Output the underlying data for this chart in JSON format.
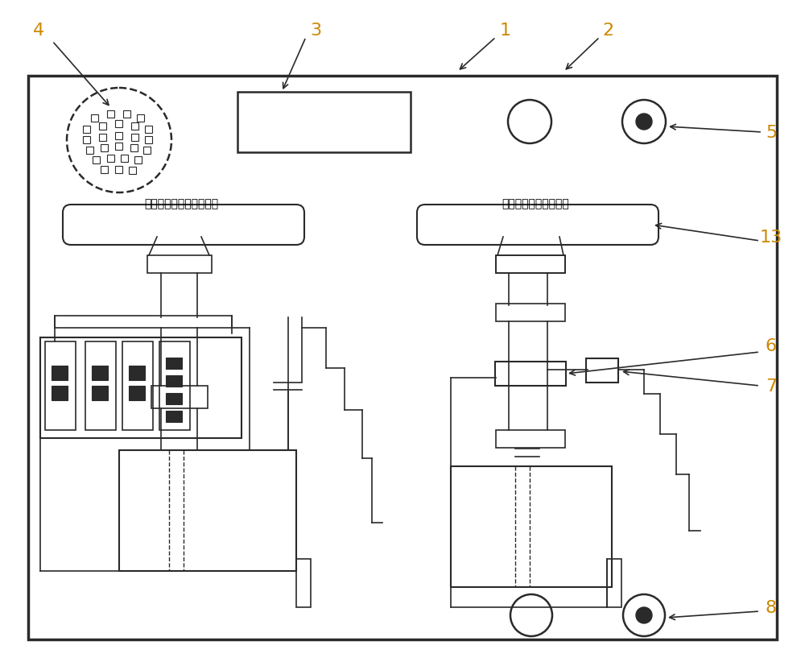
{
  "bg_color": "#ffffff",
  "line_color": "#2a2a2a",
  "label_color": "#cc8800",
  "left_panel_text": "煤气排水器有效高度确认",
  "right_panel_text": "煤气排水器冒煤气处理"
}
